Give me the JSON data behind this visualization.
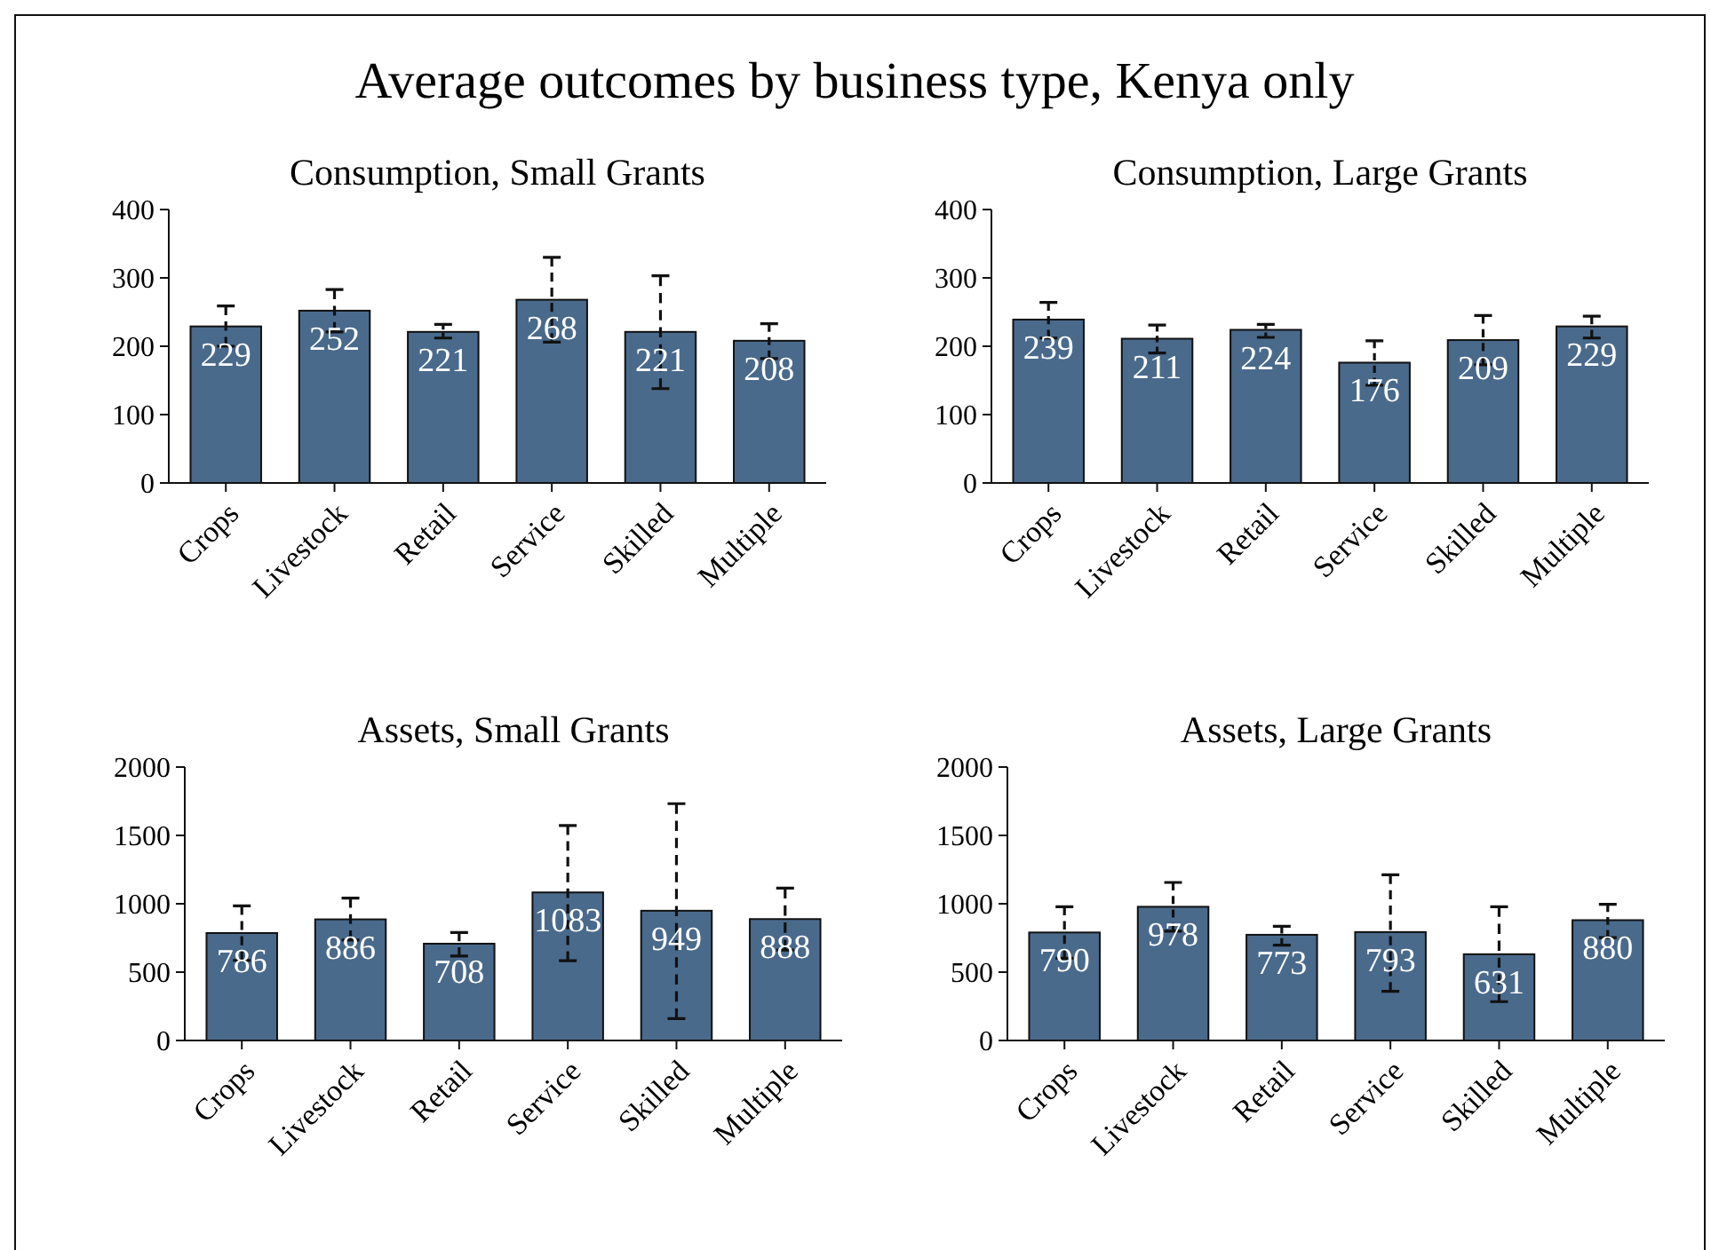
{
  "chart_data": [
    {
      "type": "other",
      "title": "Average outcomes by business type, Kenya only"
    },
    {
      "type": "bar",
      "title": "Consumption, Small Grants",
      "categories": [
        "Crops",
        "Livestock",
        "Retail",
        "Service",
        "Skilled",
        "Multiple"
      ],
      "values": [
        229,
        252,
        221,
        268,
        221,
        208
      ],
      "color": "#4a6a8c",
      "errors": [
        [
          200,
          259
        ],
        [
          221,
          283
        ],
        [
          212,
          232
        ],
        [
          206,
          330
        ],
        [
          138,
          303
        ],
        [
          182,
          233
        ]
      ],
      "ylim": [
        0,
        400
      ],
      "yticks": [
        0,
        100,
        200,
        300,
        400
      ],
      "data_labels": true
    },
    {
      "type": "bar",
      "title": "Consumption, Large Grants",
      "categories": [
        "Crops",
        "Livestock",
        "Retail",
        "Service",
        "Skilled",
        "Multiple"
      ],
      "values": [
        239,
        211,
        224,
        176,
        209,
        229
      ],
      "color": "#4a6a8c",
      "errors": [
        [
          212,
          264
        ],
        [
          190,
          231
        ],
        [
          213,
          232
        ],
        [
          143,
          208
        ],
        [
          173,
          245
        ],
        [
          212,
          244
        ]
      ],
      "ylim": [
        0,
        400
      ],
      "yticks": [
        0,
        100,
        200,
        300,
        400
      ],
      "data_labels": true
    },
    {
      "type": "bar",
      "title": "Assets, Small Grants",
      "categories": [
        "Crops",
        "Livestock",
        "Retail",
        "Service",
        "Skilled",
        "Multiple"
      ],
      "values": [
        786,
        886,
        708,
        1083,
        949,
        888
      ],
      "color": "#4a6a8c",
      "errors": [
        [
          586,
          985
        ],
        [
          734,
          1041
        ],
        [
          618,
          790
        ],
        [
          583,
          1572
        ],
        [
          160,
          1732
        ],
        [
          662,
          1114
        ]
      ],
      "ylim": [
        0,
        2000
      ],
      "yticks": [
        0,
        500,
        1000,
        1500,
        2000
      ],
      "data_labels": true
    },
    {
      "type": "bar",
      "title": "Assets, Large Grants",
      "categories": [
        "Crops",
        "Livestock",
        "Retail",
        "Service",
        "Skilled",
        "Multiple"
      ],
      "values": [
        790,
        978,
        773,
        793,
        631,
        880
      ],
      "color": "#4a6a8c",
      "errors": [
        [
          602,
          978
        ],
        [
          800,
          1156
        ],
        [
          697,
          835
        ],
        [
          359,
          1212
        ],
        [
          284,
          978
        ],
        [
          753,
          996
        ]
      ],
      "ylim": [
        0,
        2000
      ],
      "yticks": [
        0,
        500,
        1000,
        1500,
        2000
      ],
      "data_labels": true
    }
  ]
}
